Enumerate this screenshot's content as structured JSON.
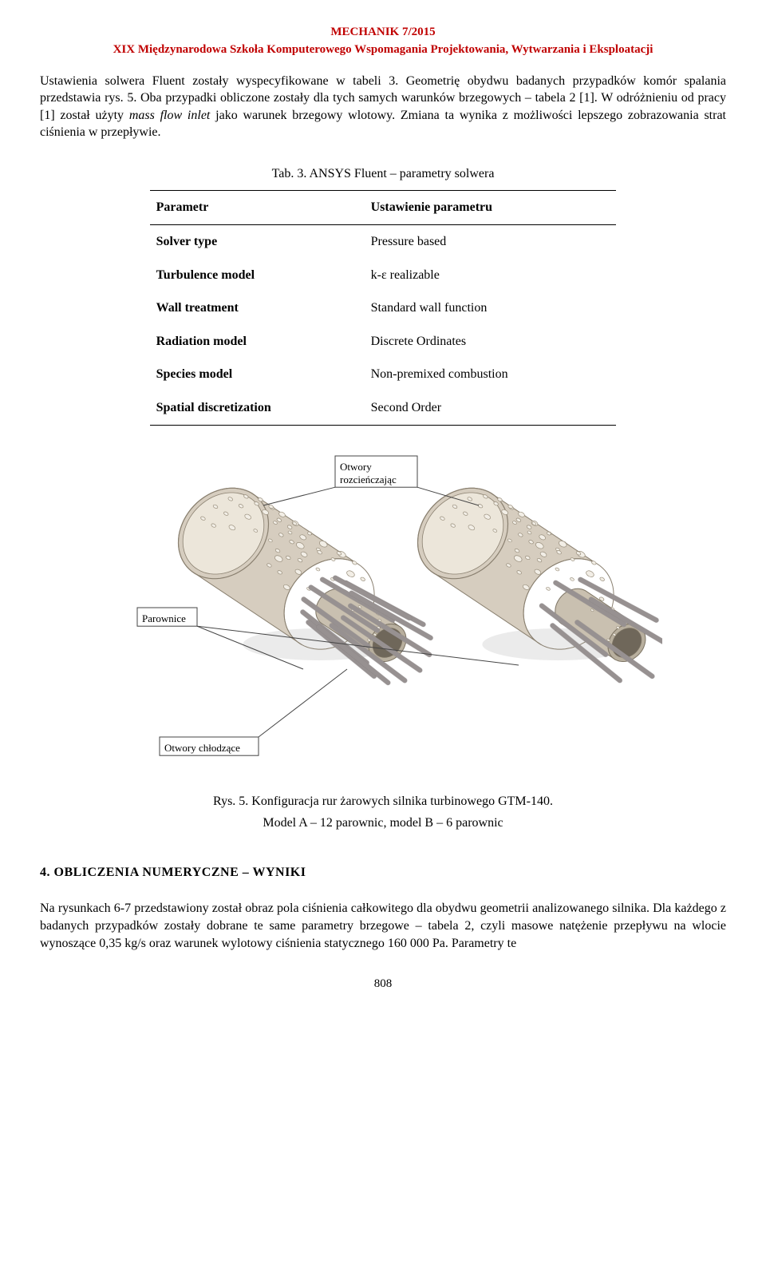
{
  "header": {
    "title": "MECHANIK 7/2015",
    "subtitle": "XIX Międzynarodowa Szkoła Komputerowego Wspomagania Projektowania, Wytwarzania i Eksploatacji"
  },
  "para1": "Ustawienia solwera Fluent zostały wyspecyfikowane w tabeli 3. Geometrię obydwu badanych przypadków komór spalania przedstawia rys. 5. Oba przypadki obliczone zostały dla tych samych warunków brzegowych – tabela 2 [1]. W odróżnieniu od pracy [1] został użyty ",
  "para1_italic": "mass flow inlet",
  "para1_tail": " jako warunek brzegowy wlotowy. Zmiana ta wynika z możliwości lepszego zobrazowania strat ciśnienia w przepływie.",
  "table": {
    "caption": "Tab. 3. ANSYS Fluent – parametry solwera",
    "head_left": "Parametr",
    "head_right": "Ustawienie parametru",
    "rows": [
      {
        "l": "Solver type",
        "r": "Pressure based"
      },
      {
        "l": "Turbulence model",
        "r": "k-ε realizable"
      },
      {
        "l": "Wall treatment",
        "r": "Standard wall function"
      },
      {
        "l": "Radiation model",
        "r": "Discrete Ordinates"
      },
      {
        "l": "Species model",
        "r": "Non-premixed combustion"
      },
      {
        "l": "Spatial discretization",
        "r": "Second Order"
      }
    ]
  },
  "figure": {
    "label_top": "Otwory",
    "label_top2": "rozcieńczając",
    "label_mid": "Parownice",
    "label_bot": "Otwory chłodzące",
    "cyl_outer_fill": "#d6cdbf",
    "cyl_outer_stroke": "#8a8070",
    "cyl_inner_fill": "#c9c0b0",
    "cyl_inner_stroke": "#7d7464",
    "rod_fill": "#a6a0a0",
    "rod_stroke": "#6c6666",
    "hole_fill": "#f2eee6",
    "hole_stroke": "#9a907e",
    "shadow": "#8f8a7f"
  },
  "fig_caption1": "Rys. 5. Konfiguracja rur żarowych silnika turbinowego GTM-140.",
  "fig_caption2": "Model A – 12 parownic, model B – 6 parownic",
  "section_title": "4. OBLICZENIA NUMERYCZNE – WYNIKI",
  "para2": "Na rysunkach 6-7 przedstawiony został obraz pola ciśnienia całkowitego dla obydwu geometrii analizowanego silnika. Dla każdego z badanych przypadków zostały dobrane te same parametry brzegowe – tabela 2, czyli masowe natężenie przepływu na wlocie wynoszące 0,35 kg/s oraz warunek wylotowy ciśnienia statycznego 160 000 Pa. Parametry te",
  "pagenum": "808"
}
